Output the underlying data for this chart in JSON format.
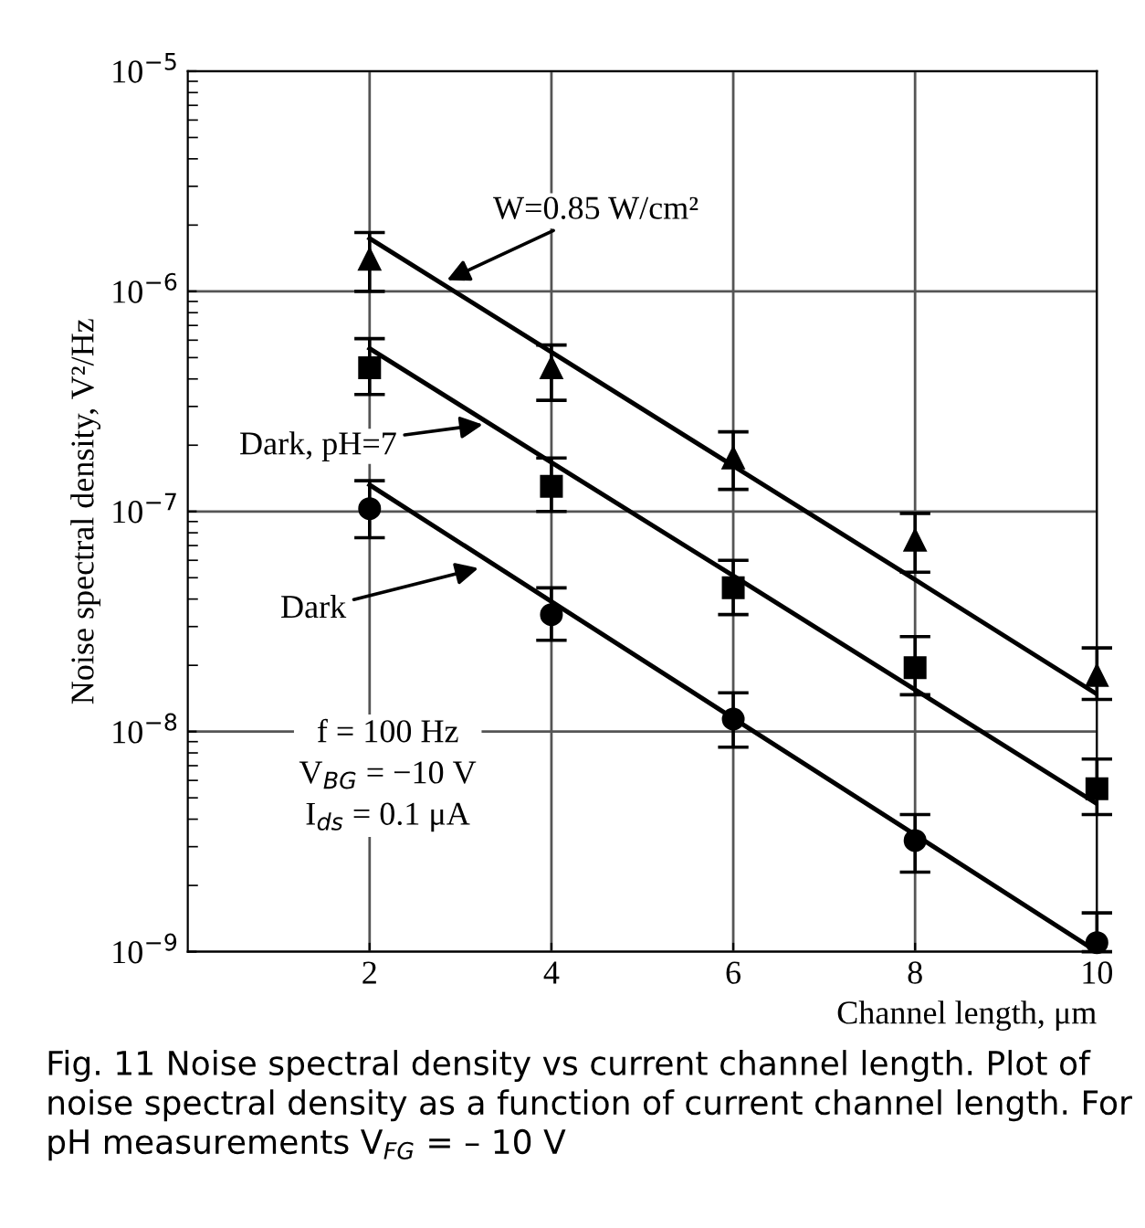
{
  "chart_data": {
    "type": "scatter",
    "xlabel": "Channel length, μm",
    "ylabel": "Noise spectral density, V²/Hz",
    "x": [
      2,
      4,
      6,
      8,
      10
    ],
    "series": [
      {
        "marker": "triangle",
        "color": "#000000",
        "values": [
          1.4e-06,
          4.5e-07,
          1.75e-07,
          7.4e-08,
          1.8e-08
        ],
        "errors": [
          [
            1e-06,
            1.85e-06
          ],
          [
            3.2e-07,
            5.7e-07
          ],
          [
            1.26e-07,
            2.3e-07
          ],
          [
            5.3e-08,
            9.8e-08
          ],
          [
            1.4e-08,
            2.4e-08
          ]
        ]
      },
      {
        "marker": "square",
        "color": "#000000",
        "values": [
          4.5e-07,
          1.3e-07,
          4.5e-08,
          1.95e-08,
          5.5e-09
        ],
        "errors": [
          [
            3.4e-07,
            6.1e-07
          ],
          [
            1e-07,
            1.75e-07
          ],
          [
            3.4e-08,
            6e-08
          ],
          [
            1.47e-08,
            2.7e-08
          ],
          [
            4.2e-09,
            7.5e-09
          ]
        ]
      },
      {
        "marker": "circle",
        "color": "#000000",
        "values": [
          1.03e-07,
          3.4e-08,
          1.14e-08,
          3.2e-09,
          1.1e-09
        ],
        "errors": [
          [
            7.6e-08,
            1.38e-07
          ],
          [
            2.6e-08,
            4.5e-08
          ],
          [
            8.5e-09,
            1.5e-08
          ],
          [
            2.3e-09,
            4.2e-09
          ],
          [
            1e-09,
            1.5e-09
          ]
        ]
      },
      {
        "type": "line",
        "marker": "none",
        "color": "#000000",
        "values": [
          1.74e-06,
          5.3e-07,
          1.61e-07,
          4.9e-08,
          1.48e-08
        ]
      },
      {
        "type": "line",
        "marker": "none",
        "color": "#000000",
        "values": [
          5.5e-07,
          1.67e-07,
          5.1e-08,
          1.55e-08,
          4.7e-09
        ]
      },
      {
        "type": "line",
        "marker": "none",
        "color": "#000000",
        "values": [
          1.32e-07,
          3.9e-08,
          1.15e-08,
          3.4e-09,
          1e-09
        ]
      }
    ],
    "log": "y",
    "grid": true,
    "xlim": [
      0,
      10
    ],
    "xticks": [
      2,
      4,
      6,
      8,
      10
    ],
    "ylim": [
      1e-09,
      1e-05
    ],
    "yticks": [
      {
        "value": 1e-09,
        "label": "10$^{−9}$"
      },
      {
        "value": 1e-08,
        "label": "10$^{−8}$"
      },
      {
        "value": 1e-07,
        "label": "10$^{−7}$"
      },
      {
        "value": 1e-06,
        "label": "10$^{−6}$"
      },
      {
        "value": 1e-05,
        "label": "10$^{−5}$"
      }
    ],
    "annotations": [
      {
        "text": "W=0.85 W/cm²",
        "x": 2.8,
        "y": 1.1e-06
      },
      {
        "text": "Dark, pH=7",
        "x": 3.3,
        "y": 2.5e-07
      },
      {
        "text": "Dark",
        "x": 3.25,
        "y": 5.6e-08
      },
      "f = 100 Hz\nV$_{BG}$ = −10 V\nI$_{ds}$ = 0.1 μA",
      "Fig. 11 Noise spectral density vs current channel length. Plot of noise spectral density as a function of current channel length. For pH measurements V$_{FG}$ = – 10 V"
    ]
  }
}
